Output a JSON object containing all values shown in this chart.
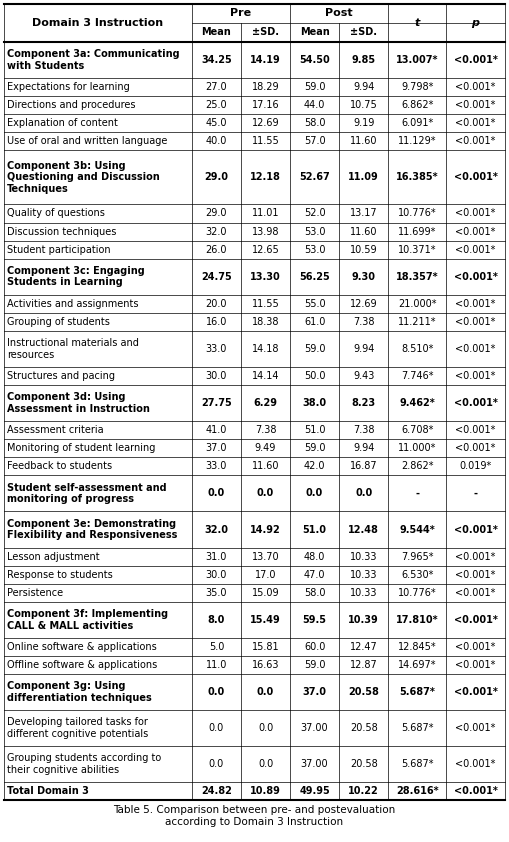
{
  "title": "Table 5. Comparison between pre- and postevaluation\naccording to Domain 3 Instruction",
  "rows": [
    [
      "Component 3a: Communicating\nwith Students",
      "34.25",
      "14.19",
      "54.50",
      "9.85",
      "13.007*",
      "<0.001*"
    ],
    [
      "Expectations for learning",
      "27.0",
      "18.29",
      "59.0",
      "9.94",
      "9.798*",
      "<0.001*"
    ],
    [
      "Directions and procedures",
      "25.0",
      "17.16",
      "44.0",
      "10.75",
      "6.862*",
      "<0.001*"
    ],
    [
      "Explanation of content",
      "45.0",
      "12.69",
      "58.0",
      "9.19",
      "6.091*",
      "<0.001*"
    ],
    [
      "Use of oral and written language",
      "40.0",
      "11.55",
      "57.0",
      "11.60",
      "11.129*",
      "<0.001*"
    ],
    [
      "Component 3b: Using\nQuestioning and Discussion\nTechniques",
      "29.0",
      "12.18",
      "52.67",
      "11.09",
      "16.385*",
      "<0.001*"
    ],
    [
      "Quality of questions",
      "29.0",
      "11.01",
      "52.0",
      "13.17",
      "10.776*",
      "<0.001*"
    ],
    [
      "Discussion techniques",
      "32.0",
      "13.98",
      "53.0",
      "11.60",
      "11.699*",
      "<0.001*"
    ],
    [
      "Student participation",
      "26.0",
      "12.65",
      "53.0",
      "10.59",
      "10.371*",
      "<0.001*"
    ],
    [
      "Component 3c: Engaging\nStudents in Learning",
      "24.75",
      "13.30",
      "56.25",
      "9.30",
      "18.357*",
      "<0.001*"
    ],
    [
      "Activities and assignments",
      "20.0",
      "11.55",
      "55.0",
      "12.69",
      "21.000*",
      "<0.001*"
    ],
    [
      "Grouping of students",
      "16.0",
      "18.38",
      "61.0",
      "7.38",
      "11.211*",
      "<0.001*"
    ],
    [
      "Instructional materials and\nresources",
      "33.0",
      "14.18",
      "59.0",
      "9.94",
      "8.510*",
      "<0.001*"
    ],
    [
      "Structures and pacing",
      "30.0",
      "14.14",
      "50.0",
      "9.43",
      "7.746*",
      "<0.001*"
    ],
    [
      "Component 3d: Using\nAssessment in Instruction",
      "27.75",
      "6.29",
      "38.0",
      "8.23",
      "9.462*",
      "<0.001*"
    ],
    [
      "Assessment criteria",
      "41.0",
      "7.38",
      "51.0",
      "7.38",
      "6.708*",
      "<0.001*"
    ],
    [
      "Monitoring of student learning",
      "37.0",
      "9.49",
      "59.0",
      "9.94",
      "11.000*",
      "<0.001*"
    ],
    [
      "Feedback to students",
      "33.0",
      "11.60",
      "42.0",
      "16.87",
      "2.862*",
      "0.019*"
    ],
    [
      "Student self-assessment and\nmonitoring of progress",
      "0.0",
      "0.0",
      "0.0",
      "0.0",
      "-",
      "-"
    ],
    [
      "Component 3e: Demonstrating\nFlexibility and Responsiveness",
      "32.0",
      "14.92",
      "51.0",
      "12.48",
      "9.544*",
      "<0.001*"
    ],
    [
      "Lesson adjustment",
      "31.0",
      "13.70",
      "48.0",
      "10.33",
      "7.965*",
      "<0.001*"
    ],
    [
      "Response to students",
      "30.0",
      "17.0",
      "47.0",
      "10.33",
      "6.530*",
      "<0.001*"
    ],
    [
      "Persistence",
      "35.0",
      "15.09",
      "58.0",
      "10.33",
      "10.776*",
      "<0.001*"
    ],
    [
      "Component 3f: Implementing\nCALL & MALL activities",
      "8.0",
      "15.49",
      "59.5",
      "10.39",
      "17.810*",
      "<0.001*"
    ],
    [
      "Online software & applications",
      "5.0",
      "15.81",
      "60.0",
      "12.47",
      "12.845*",
      "<0.001*"
    ],
    [
      "Offline software & applications",
      "11.0",
      "16.63",
      "59.0",
      "12.87",
      "14.697*",
      "<0.001*"
    ],
    [
      "Component 3g: Using\ndifferentiation techniques",
      "0.0",
      "0.0",
      "37.0",
      "20.58",
      "5.687*",
      "<0.001*"
    ],
    [
      "Developing tailored tasks for\ndifferent cognitive potentials",
      "0.0",
      "0.0",
      "37.00",
      "20.58",
      "5.687*",
      "<0.001*"
    ],
    [
      "Grouping students according to\ntheir cognitive abilities",
      "0.0",
      "0.0",
      "37.00",
      "20.58",
      "5.687*",
      "<0.001*"
    ],
    [
      "Total Domain 3",
      "24.82",
      "10.89",
      "49.95",
      "10.22",
      "28.616*",
      "<0.001*"
    ]
  ],
  "component_rows": [
    0,
    5,
    9,
    14,
    18,
    19,
    23,
    26
  ],
  "total_row": 29,
  "bg_color": "#ffffff",
  "font_size": 7.0,
  "header_font_size": 8.0
}
